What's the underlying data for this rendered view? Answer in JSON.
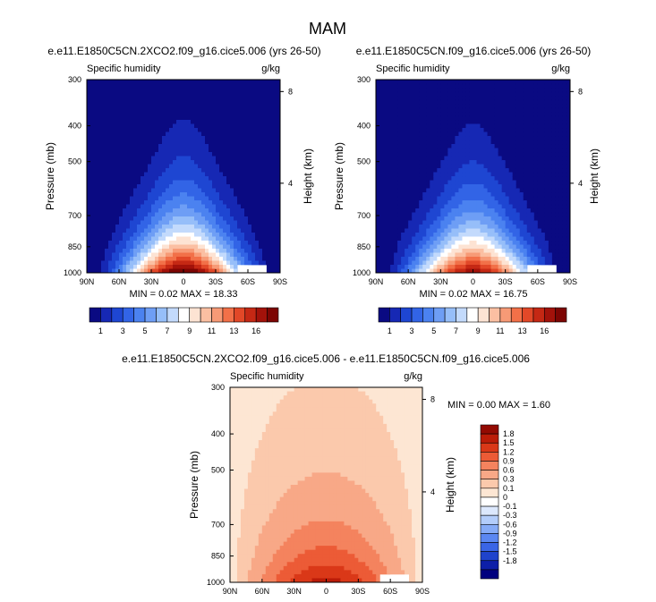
{
  "page_title": "MAM",
  "colors": {
    "top_scale": [
      "#0a0a82",
      "#1628b4",
      "#1e46d2",
      "#3264e6",
      "#4b82f0",
      "#6e9ef5",
      "#96bef9",
      "#c3dafc",
      "#ffffff",
      "#fde3d3",
      "#fbbfa2",
      "#f79a76",
      "#f27048",
      "#e24828",
      "#c52814",
      "#a3120a",
      "#7d0503"
    ],
    "diff_scale": [
      "#00007f",
      "#0d1fa8",
      "#1f43cc",
      "#3a65e6",
      "#5b87f2",
      "#86abf7",
      "#b3cdfb",
      "#dce8fd",
      "#ffffff",
      "#fde6d3",
      "#fbc9ac",
      "#f8a887",
      "#f4835e",
      "#ec5b36",
      "#da3818",
      "#bb1c08",
      "#930a02"
    ],
    "axis": "#000000"
  },
  "chart_data": [
    {
      "type": "contour",
      "title": "e.e11.E1850C5CN.2XCO2.f09_g16.cice5.006 (yrs 26-50)",
      "left_label": "Specific humidity",
      "right_label": "g/kg",
      "ylabel": "Pressure (mb)",
      "ylabel_right": "Height (km)",
      "x_ticks": [
        "90N",
        "60N",
        "30N",
        "0",
        "30S",
        "60S",
        "90S"
      ],
      "y_ticks": [
        "300",
        "400",
        "500",
        "700",
        "850",
        "1000"
      ],
      "y2_ticks": [
        "8",
        "4"
      ],
      "stats": "MIN =  0.02  MAX = 18.33",
      "min": 0.02,
      "max": 18.33,
      "colorbar_labels": [
        "1",
        "3",
        "5",
        "7",
        "9",
        "11",
        "13",
        "16"
      ],
      "levels": [
        1,
        2,
        3,
        4,
        5,
        6,
        7,
        8,
        9,
        10,
        11,
        12,
        13,
        14,
        15,
        16
      ]
    },
    {
      "type": "contour",
      "title": "e.e11.E1850C5CN.f09_g16.cice5.006 (yrs 26-50)",
      "left_label": "Specific humidity",
      "right_label": "g/kg",
      "ylabel": "Pressure (mb)",
      "ylabel_right": "Height (km)",
      "x_ticks": [
        "90N",
        "60N",
        "30N",
        "0",
        "30S",
        "60S",
        "90S"
      ],
      "y_ticks": [
        "300",
        "400",
        "500",
        "700",
        "850",
        "1000"
      ],
      "y2_ticks": [
        "8",
        "4"
      ],
      "stats": "MIN =  0.02  MAX = 16.75",
      "min": 0.02,
      "max": 16.75,
      "colorbar_labels": [
        "1",
        "3",
        "5",
        "7",
        "9",
        "11",
        "13",
        "16"
      ],
      "levels": [
        1,
        2,
        3,
        4,
        5,
        6,
        7,
        8,
        9,
        10,
        11,
        12,
        13,
        14,
        15,
        16
      ]
    },
    {
      "type": "contour",
      "title": "e.e11.E1850C5CN.2XCO2.f09_g16.cice5.006 - e.e11.E1850C5CN.f09_g16.cice5.006",
      "left_label": "Specific humidity",
      "right_label": "g/kg",
      "ylabel": "Pressure (mb)",
      "ylabel_right": "Height (km)",
      "x_ticks": [
        "90N",
        "60N",
        "30N",
        "0",
        "30S",
        "60S",
        "90S"
      ],
      "y_ticks": [
        "300",
        "400",
        "500",
        "700",
        "850",
        "1000"
      ],
      "y2_ticks": [
        "8",
        "4"
      ],
      "stats": "MIN =  0.00  MAX =   1.60",
      "min": 0.0,
      "max": 1.6,
      "colorbar_labels": [
        "1.8",
        "1.5",
        "1.2",
        "0.9",
        "0.6",
        "0.3",
        "0.1",
        "0",
        "-0.1",
        "-0.3",
        "-0.6",
        "-0.9",
        "-1.2",
        "-1.5",
        "-1.8"
      ],
      "levels": [
        1.8,
        1.5,
        1.2,
        0.9,
        0.6,
        0.3,
        0.1,
        0,
        -0.1,
        -0.3,
        -0.6,
        -0.9,
        -1.2,
        -1.5,
        -1.8
      ]
    }
  ]
}
